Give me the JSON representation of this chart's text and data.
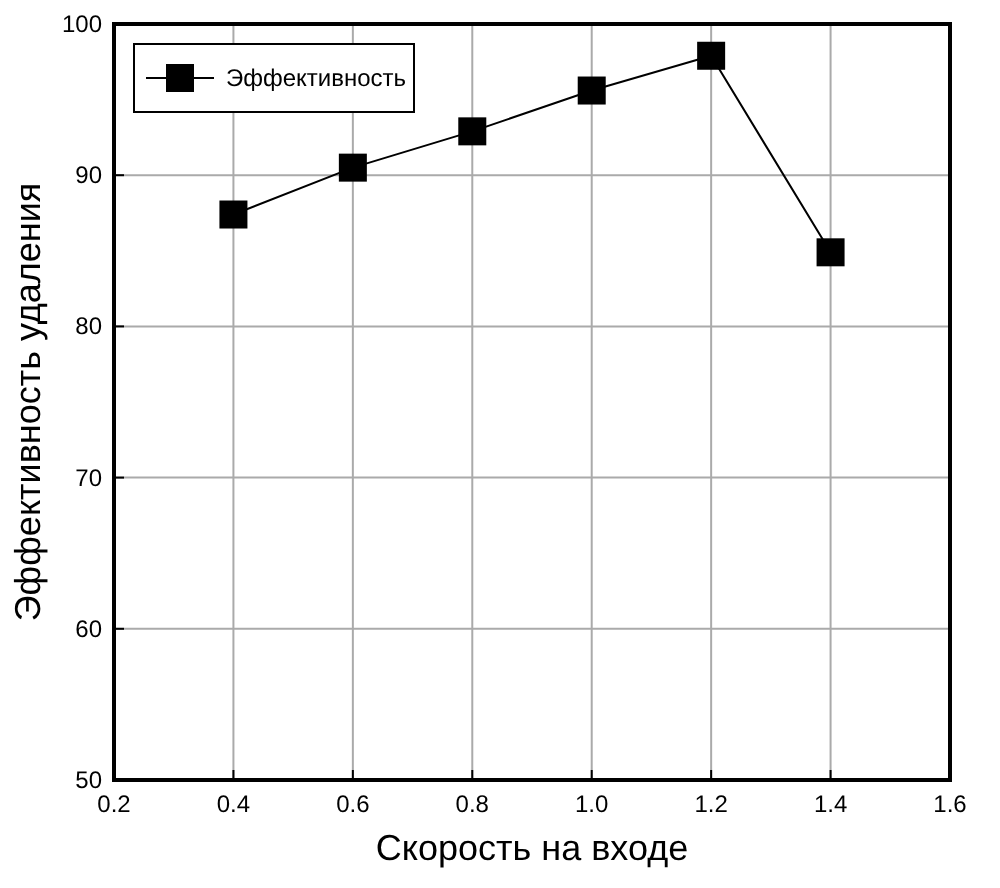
{
  "chart_data": {
    "type": "line",
    "xlabel": "Скорость на входе",
    "ylabel": "Эффективность удаления",
    "x": [
      0.4,
      0.6,
      0.8,
      1.0,
      1.2,
      1.4
    ],
    "series": [
      {
        "name": "Эффективность",
        "color": "#000000",
        "values": [
          87.4,
          90.5,
          92.9,
          95.6,
          97.9,
          84.9
        ]
      }
    ],
    "xlim": [
      0.2,
      1.6
    ],
    "xticks": [
      {
        "value": 0.2,
        "label": "0.2"
      },
      {
        "value": 0.4,
        "label": "0.4"
      },
      {
        "value": 0.6,
        "label": "0.6"
      },
      {
        "value": 0.8,
        "label": "0.8"
      },
      {
        "value": 1.0,
        "label": "1.0"
      },
      {
        "value": 1.2,
        "label": "1.2"
      },
      {
        "value": 1.4,
        "label": "1.4"
      },
      {
        "value": 1.6,
        "label": "1.6"
      }
    ],
    "ylim": [
      50,
      100
    ],
    "yticks": [
      50,
      60,
      70,
      80,
      90,
      100
    ],
    "grid": true,
    "legend": "top left",
    "marker": "square",
    "line_style": "solid"
  }
}
